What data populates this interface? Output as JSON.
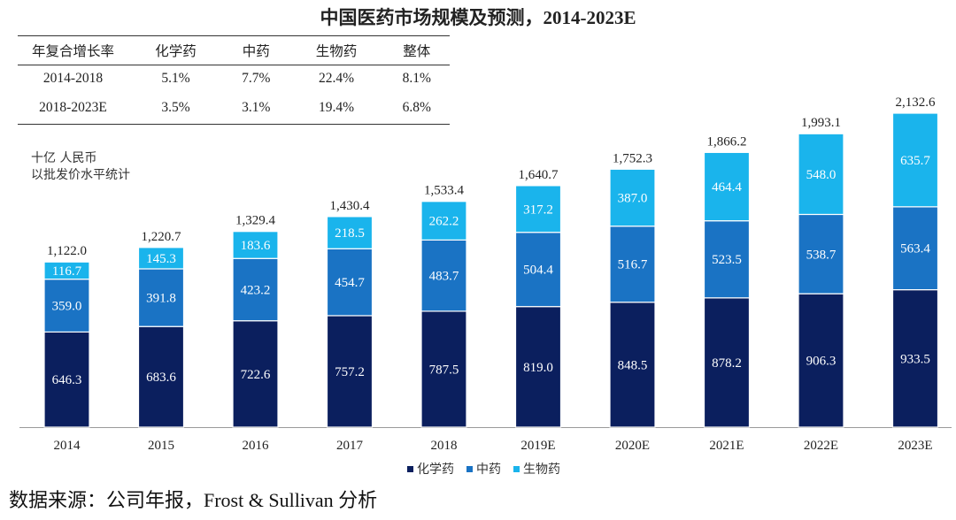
{
  "title": "中国医药市场规模及预测，2014-2023E",
  "cagr_table": {
    "headers": [
      "年复合增长率",
      "化学药",
      "中药",
      "生物药",
      "整体"
    ],
    "rows": [
      [
        "2014-2018",
        "5.1%",
        "7.7%",
        "22.4%",
        "8.1%"
      ],
      [
        "2018-2023E",
        "3.5%",
        "3.1%",
        "19.4%",
        "6.8%"
      ]
    ]
  },
  "unit_line1": "十亿  人民币",
  "unit_line2": "以批发价水平统计",
  "source": "数据来源：公司年报，Frost & Sullivan 分析",
  "chart_data": {
    "type": "bar",
    "stacked": true,
    "categories": [
      "2014",
      "2015",
      "2016",
      "2017",
      "2018",
      "2019E",
      "2020E",
      "2021E",
      "2022E",
      "2023E"
    ],
    "series": [
      {
        "name": "化学药",
        "color": "#0b1f5e",
        "values": [
          646.3,
          683.6,
          722.6,
          757.2,
          787.5,
          819.0,
          848.5,
          878.2,
          906.3,
          933.5
        ]
      },
      {
        "name": "中药",
        "color": "#1a73c4",
        "values": [
          359.0,
          391.8,
          423.2,
          454.7,
          483.7,
          504.4,
          516.7,
          523.5,
          538.7,
          563.4
        ]
      },
      {
        "name": "生物药",
        "color": "#1ab4ec",
        "values": [
          116.7,
          145.3,
          183.6,
          218.5,
          262.2,
          317.2,
          387.0,
          464.4,
          548.0,
          635.7
        ]
      }
    ],
    "totals": [
      "1,122.0",
      "1,220.7",
      "1,329.4",
      "1,430.4",
      "1,533.4",
      "1,640.7",
      "1,752.3",
      "1,866.2",
      "1,993.1",
      "2,132.6"
    ],
    "legend_position": "bottom"
  }
}
